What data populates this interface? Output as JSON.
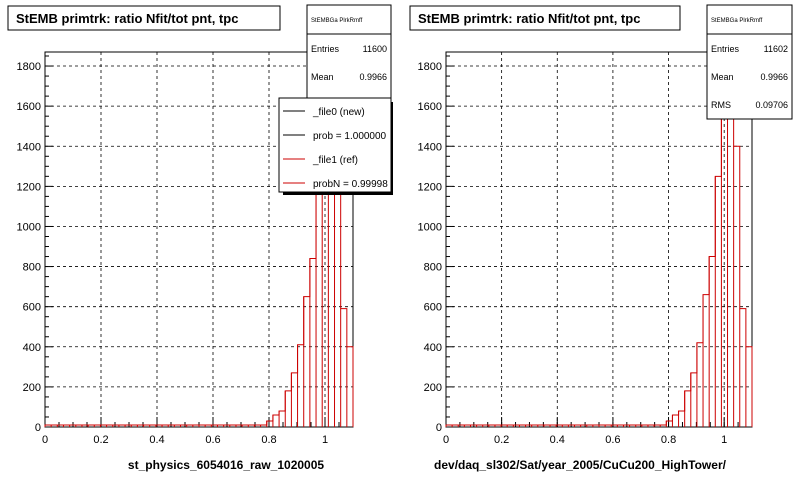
{
  "chart_data": [
    {
      "type": "histogram",
      "title": "StEMB primtrk: ratio Nfit/tot pnt, tpc",
      "xlabel": "st_physics_6054016_raw_1020005",
      "xlim": [
        0,
        1.1
      ],
      "ylim": [
        0,
        1870
      ],
      "xticks": [
        "0",
        "0.2",
        "0.4",
        "0.6",
        "0.8",
        "1"
      ],
      "yticks": [
        "0",
        "200",
        "400",
        "600",
        "800",
        "1000",
        "1200",
        "1400",
        "1600",
        "1800"
      ],
      "grid": true,
      "stats": {
        "name": "StEMBGa PlrkRmff",
        "entries_label": "Entries",
        "entries": "11600",
        "mean_label": "Mean",
        "mean": "0.9966",
        "rms_label": "RMS",
        "rms": ""
      },
      "legend": [
        {
          "label": "_file0 (new)",
          "color": "#000000"
        },
        {
          "label": "prob = 1.000000",
          "color": "#000000"
        },
        {
          "label": "_file1 (ref)",
          "color": "#cc0000"
        },
        {
          "label": "probN = 0.99998",
          "color": "#cc0000"
        }
      ],
      "bin_width": 0.022,
      "bins_x": [
        0.0,
        0.022,
        0.044,
        0.066,
        0.088,
        0.11,
        0.132,
        0.154,
        0.176,
        0.198,
        0.22,
        0.242,
        0.264,
        0.286,
        0.308,
        0.33,
        0.352,
        0.374,
        0.396,
        0.418,
        0.44,
        0.462,
        0.484,
        0.506,
        0.528,
        0.55,
        0.572,
        0.594,
        0.616,
        0.638,
        0.66,
        0.682,
        0.704,
        0.726,
        0.748,
        0.77,
        0.792,
        0.814,
        0.836,
        0.858,
        0.88,
        0.902,
        0.924,
        0.946,
        0.968,
        0.99,
        1.012,
        1.034,
        1.056,
        1.078
      ],
      "series": [
        {
          "name": "_file1 (ref)",
          "color": "#cc0000",
          "values": [
            10,
            10,
            10,
            10,
            10,
            10,
            10,
            10,
            10,
            10,
            10,
            10,
            10,
            10,
            10,
            10,
            10,
            10,
            10,
            10,
            10,
            10,
            10,
            10,
            10,
            10,
            10,
            10,
            10,
            10,
            10,
            10,
            10,
            10,
            10,
            10,
            30,
            60,
            80,
            180,
            270,
            410,
            650,
            840,
            1230,
            1780,
            1800,
            1350,
            590,
            400
          ]
        }
      ]
    },
    {
      "type": "histogram",
      "title": "StEMB primtrk: ratio Nfit/tot pnt, tpc",
      "xlabel": "dev/daq_sl302/Sat/year_2005/CuCu200_HighTower/",
      "xlim": [
        0,
        1.1
      ],
      "ylim": [
        0,
        1870
      ],
      "xticks": [
        "0",
        "0.2",
        "0.4",
        "0.6",
        "0.8",
        "1"
      ],
      "yticks": [
        "0",
        "200",
        "400",
        "600",
        "800",
        "1000",
        "1200",
        "1400",
        "1600",
        "1800"
      ],
      "grid": true,
      "stats": {
        "name": "StEMBGa PlrkRmff",
        "entries_label": "Entries",
        "entries": "11602",
        "mean_label": "Mean",
        "mean": "0.9966",
        "rms_label": "RMS",
        "rms": "0.09706"
      },
      "legend": [],
      "bin_width": 0.022,
      "bins_x": [
        0.0,
        0.022,
        0.044,
        0.066,
        0.088,
        0.11,
        0.132,
        0.154,
        0.176,
        0.198,
        0.22,
        0.242,
        0.264,
        0.286,
        0.308,
        0.33,
        0.352,
        0.374,
        0.396,
        0.418,
        0.44,
        0.462,
        0.484,
        0.506,
        0.528,
        0.55,
        0.572,
        0.594,
        0.616,
        0.638,
        0.66,
        0.682,
        0.704,
        0.726,
        0.748,
        0.77,
        0.792,
        0.814,
        0.836,
        0.858,
        0.88,
        0.902,
        0.924,
        0.946,
        0.968,
        0.99,
        1.012,
        1.034,
        1.056,
        1.078
      ],
      "series": [
        {
          "name": "",
          "color": "#cc0000",
          "values": [
            10,
            10,
            10,
            10,
            10,
            10,
            10,
            10,
            10,
            10,
            10,
            10,
            10,
            10,
            10,
            10,
            10,
            10,
            10,
            10,
            10,
            10,
            10,
            10,
            10,
            10,
            10,
            10,
            10,
            10,
            10,
            10,
            10,
            10,
            10,
            10,
            30,
            60,
            80,
            180,
            270,
            420,
            660,
            850,
            1250,
            1720,
            1740,
            1400,
            590,
            400
          ]
        }
      ]
    }
  ]
}
